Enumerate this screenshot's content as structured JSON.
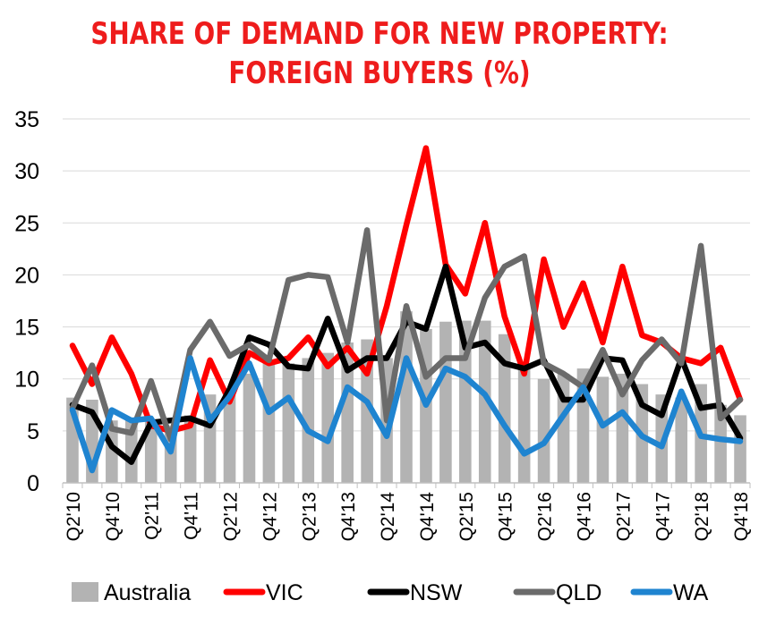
{
  "chart_data": {
    "type": "bar+line",
    "title_lines": [
      "SHARE OF DEMAND FOR NEW PROPERTY:",
      "FOREIGN BUYERS (%)"
    ],
    "categories": [
      "Q2'10",
      "Q3'10",
      "Q4'10",
      "Q1'11",
      "Q2'11",
      "Q3'11",
      "Q4'11",
      "Q1'12",
      "Q2'12",
      "Q3'12",
      "Q4'12",
      "Q1'13",
      "Q2'13",
      "Q3'13",
      "Q4'13",
      "Q1'14",
      "Q2'14",
      "Q3'14",
      "Q4'14",
      "Q1'15",
      "Q2'15",
      "Q3'15",
      "Q4'15",
      "Q1'16",
      "Q2'16",
      "Q3'16",
      "Q4'16",
      "Q1'17",
      "Q2'17",
      "Q3'17",
      "Q4'17",
      "Q1'18",
      "Q2'18",
      "Q3'18",
      "Q4'18"
    ],
    "tick_labels": [
      "Q2'10",
      "Q4'10",
      "Q2'11",
      "Q4'11",
      "Q2'12",
      "Q4'12",
      "Q2'13",
      "Q4'13",
      "Q2'14",
      "Q4'14",
      "Q2'15",
      "Q4'15",
      "Q2'16",
      "Q4'16",
      "Q2'17",
      "Q4'17",
      "Q2'18",
      "Q4'18"
    ],
    "ylim": [
      0,
      35
    ],
    "yticks": [
      0,
      5,
      10,
      15,
      20,
      25,
      30,
      35
    ],
    "bar_series": {
      "name": "Australia",
      "color": "#b3b3b3",
      "values": [
        8.2,
        8.0,
        6.0,
        6.2,
        6.0,
        5.5,
        6.5,
        8.5,
        9.0,
        10.5,
        11.8,
        11.5,
        12.0,
        12.5,
        13.5,
        13.8,
        12.0,
        16.5,
        14.8,
        15.5,
        15.6,
        15.6,
        14.3,
        11.0,
        10.0,
        10.5,
        11.0,
        10.2,
        10.5,
        9.5,
        8.5,
        8.2,
        9.5,
        7.5,
        6.5
      ]
    },
    "line_series": [
      {
        "name": "VIC",
        "color": "#ff0000",
        "values": [
          13.2,
          9.5,
          14.0,
          10.5,
          5.5,
          5.0,
          5.5,
          11.8,
          7.8,
          12.5,
          11.5,
          12.0,
          14.0,
          11.2,
          13.0,
          10.5,
          17.0,
          24.8,
          32.2,
          21.0,
          18.2,
          25.0,
          16.0,
          10.5,
          21.5,
          15.0,
          19.2,
          13.5,
          20.8,
          14.2,
          13.5,
          12.0,
          11.5,
          13.0,
          8.0
        ]
      },
      {
        "name": "NSW",
        "color": "#000000",
        "values": [
          7.5,
          6.8,
          3.5,
          2.0,
          5.8,
          6.0,
          6.2,
          5.5,
          9.0,
          14.0,
          13.3,
          11.2,
          11.0,
          15.8,
          10.8,
          12.0,
          12.0,
          15.5,
          14.8,
          20.8,
          13.0,
          13.5,
          11.5,
          11.0,
          11.8,
          8.0,
          8.0,
          12.0,
          11.8,
          7.5,
          6.5,
          12.0,
          7.2,
          7.5,
          4.3
        ]
      },
      {
        "name": "QLD",
        "color": "#6b6b6b",
        "values": [
          7.2,
          11.3,
          5.2,
          4.8,
          9.8,
          4.2,
          12.8,
          15.5,
          12.2,
          13.3,
          11.8,
          19.5,
          20.0,
          19.8,
          13.5,
          24.3,
          6.0,
          17.0,
          10.2,
          12.0,
          12.0,
          17.8,
          20.8,
          21.8,
          11.5,
          10.5,
          9.2,
          12.8,
          8.5,
          11.8,
          13.8,
          11.5,
          22.8,
          6.2,
          8.0
        ]
      },
      {
        "name": "WA",
        "color": "#1f84d0",
        "values": [
          7.0,
          1.2,
          7.0,
          6.0,
          6.2,
          3.0,
          12.0,
          6.0,
          8.3,
          11.5,
          6.8,
          8.2,
          5.0,
          4.0,
          9.2,
          7.8,
          4.5,
          12.0,
          7.5,
          11.0,
          10.2,
          8.5,
          5.5,
          2.8,
          3.8,
          6.5,
          9.2,
          5.5,
          6.8,
          4.5,
          3.5,
          8.8,
          4.5,
          4.2,
          4.0
        ]
      }
    ],
    "legend": [
      "Australia",
      "VIC",
      "NSW",
      "QLD",
      "WA"
    ],
    "legend_position": "bottom"
  }
}
